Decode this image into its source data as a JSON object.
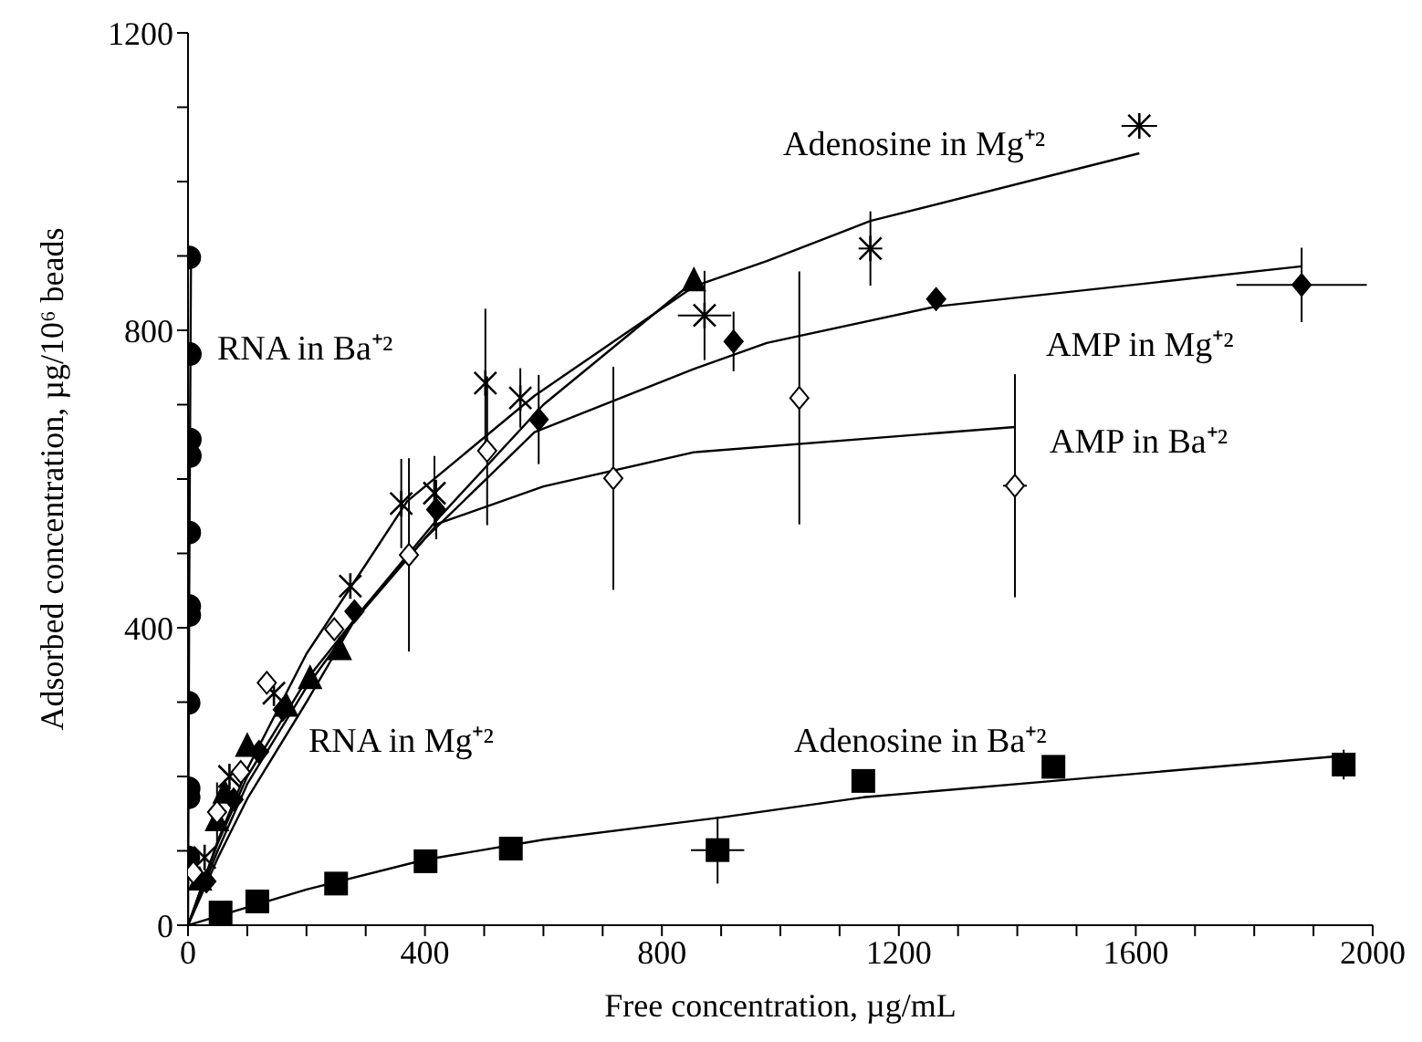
{
  "chart_data": {
    "type": "scatter",
    "xlabel": "Free concentration, µg/mL",
    "ylabel": "Adsorbed concentration, µg/10⁶ beads",
    "xlim": [
      0,
      2000
    ],
    "ylim": [
      0,
      1200
    ],
    "xticks": [
      0,
      {
        "value": 100,
        "label": null
      },
      {
        "value": 200,
        "label": null
      },
      {
        "value": 300,
        "label": null
      },
      400,
      {
        "value": 500,
        "label": null
      },
      {
        "value": 600,
        "label": null
      },
      {
        "value": 700,
        "label": null
      },
      800,
      {
        "value": 900,
        "label": null
      },
      {
        "value": 1000,
        "label": null
      },
      {
        "value": 1100,
        "label": null
      },
      1200,
      {
        "value": 1300,
        "label": null
      },
      {
        "value": 1400,
        "label": null
      },
      {
        "value": 1500,
        "label": null
      },
      1600,
      {
        "value": 1700,
        "label": null
      },
      {
        "value": 1800,
        "label": null
      },
      {
        "value": 1900,
        "label": null
      },
      2000
    ],
    "yticks": [
      0,
      {
        "value": 100,
        "label": null
      },
      {
        "value": 200,
        "label": null
      },
      {
        "value": 300,
        "label": null
      },
      400,
      {
        "value": 500,
        "label": null
      },
      {
        "value": 600,
        "label": null
      },
      {
        "value": 700,
        "label": null
      },
      800,
      {
        "value": 900,
        "label": null
      },
      {
        "value": 1000,
        "label": null
      },
      {
        "value": 1100,
        "label": null
      },
      1200
    ],
    "series": [
      {
        "marker": "circle",
        "color": "#000000",
        "x": [
          0.5,
          1,
          1,
          1,
          2,
          2,
          2,
          3,
          3,
          3,
          2
        ],
        "values": [
          91,
          172,
          184,
          299,
          417,
          429,
          528,
          631,
          653,
          768,
          898
        ]
      },
      {
        "type": "line",
        "marker": "none",
        "color": "#000000",
        "x": [
          0,
          2,
          5
        ],
        "values": [
          0,
          450,
          900
        ]
      },
      {
        "marker": "cross",
        "color": "#000000",
        "x": [
          28,
          70,
          145,
          274,
          360,
          416,
          502,
          561,
          872,
          1152,
          1606
        ],
        "values": [
          91,
          200,
          312,
          456,
          567,
          581,
          729,
          709,
          820,
          910,
          1075
        ],
        "errors": [
          null,
          null,
          null,
          null,
          60,
          50,
          100,
          40,
          60,
          50,
          null
        ],
        "xerrors": [
          null,
          null,
          null,
          null,
          null,
          null,
          null,
          null,
          45,
          20,
          30
        ]
      },
      {
        "type": "line",
        "marker": "none",
        "color": "#000000",
        "x": [
          0,
          50,
          100,
          200,
          300,
          370,
          585,
          854,
          977,
          1152,
          1606
        ],
        "values": [
          0,
          113,
          210,
          365,
          485,
          570,
          712,
          859,
          893,
          947,
          1038
        ]
      },
      {
        "marker": "triangle",
        "color": "#000000",
        "x": [
          20,
          49,
          62,
          100,
          166,
          206,
          256,
          854
        ],
        "values": [
          60,
          140,
          177,
          240,
          294,
          331,
          370,
          866
        ]
      },
      {
        "type": "line",
        "marker": "none",
        "color": "#000000",
        "x": [
          0,
          50,
          100,
          200,
          300,
          420,
          600,
          854
        ],
        "values": [
          0,
          100,
          190,
          320,
          430,
          545,
          700,
          866
        ]
      },
      {
        "marker": "diamond",
        "color": "#000000",
        "x": [
          31,
          77,
          120,
          160,
          281,
          419,
          592,
          921,
          1263,
          1880
        ],
        "values": [
          59,
          169,
          233,
          290,
          422,
          559,
          680,
          785,
          842,
          861
        ],
        "errors": [
          null,
          null,
          null,
          null,
          null,
          40,
          60,
          40,
          null,
          50
        ],
        "xerrors": [
          null,
          null,
          null,
          null,
          null,
          null,
          null,
          null,
          null,
          110
        ]
      },
      {
        "type": "line",
        "marker": "none",
        "color": "#000000",
        "x": [
          0,
          50,
          100,
          200,
          281,
          400,
          585,
          854,
          977,
          1263,
          1880
        ],
        "values": [
          0,
          90,
          170,
          300,
          410,
          520,
          663,
          748,
          783,
          832,
          886
        ]
      },
      {
        "marker": "diamond",
        "color": "#ffffff",
        "x": [
          9,
          49,
          89,
          133,
          247,
          373,
          505,
          718,
          1032,
          1396
        ],
        "values": [
          71,
          152,
          206,
          326,
          398,
          498,
          638,
          601,
          709,
          591
        ],
        "errors": [
          null,
          40,
          null,
          null,
          null,
          130,
          100,
          150,
          170,
          150
        ],
        "xerrors": [
          null,
          null,
          null,
          null,
          null,
          null,
          null,
          null,
          null,
          20
        ]
      },
      {
        "type": "line",
        "marker": "none",
        "color": "#000000",
        "x": [
          0,
          50,
          100,
          200,
          300,
          422,
          600,
          854,
          1396
        ],
        "values": [
          0,
          110,
          200,
          330,
          430,
          540,
          590,
          636,
          670
        ]
      },
      {
        "marker": "square",
        "color": "#000000",
        "x": [
          55,
          117,
          250,
          401,
          545,
          894,
          1140,
          1461,
          1951
        ],
        "values": [
          17,
          32,
          56,
          86,
          103,
          101,
          194,
          213,
          216
        ],
        "errors": [
          null,
          null,
          null,
          null,
          null,
          45,
          null,
          null,
          20
        ],
        "xerrors": [
          null,
          null,
          null,
          null,
          null,
          45,
          null,
          null,
          null
        ]
      },
      {
        "type": "line",
        "marker": "none",
        "color": "#000000",
        "x": [
          0,
          200,
          400,
          600,
          900,
          1140,
          1461,
          1951
        ],
        "values": [
          0,
          48,
          88,
          115,
          145,
          172,
          194,
          228
        ]
      }
    ],
    "annotations": [
      "RNA in Ba⁺²",
      "Adenosine in Mg⁺²",
      "AMP in Mg⁺²",
      "AMP in Ba⁺²",
      "RNA in Mg⁺²",
      "Adenosine in Ba⁺²"
    ]
  }
}
